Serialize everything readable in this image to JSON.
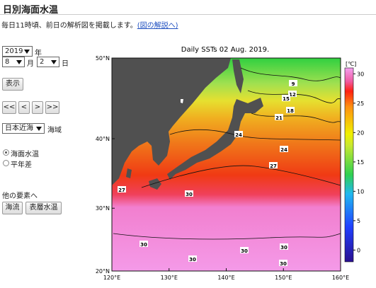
{
  "header": {
    "title": "日別海面水温",
    "notice": "毎日11時頃、前日の解析図を掲載します。",
    "link": "(図の解説へ)"
  },
  "controls": {
    "year": "2019",
    "year_unit": "年",
    "month": "8",
    "month_unit": "月",
    "day": "2",
    "day_unit": "日",
    "show_button": "表示",
    "nav_buttons": [
      "<<",
      "<",
      ">",
      ">>"
    ],
    "area": "日本近海",
    "area_unit": "海域",
    "radios": [
      {
        "label": "海面水温",
        "checked": true
      },
      {
        "label": "平年差",
        "checked": false
      }
    ],
    "other_heading": "他の要素へ",
    "other_buttons": [
      "海流",
      "表層水温"
    ]
  },
  "map": {
    "title": "Daily SSTs 02 Aug. 2019.",
    "xlim": [
      120,
      160
    ],
    "ylim": [
      20,
      50
    ],
    "xticks": [
      {
        "value": 120,
        "label": "120°E"
      },
      {
        "value": 130,
        "label": "130°E"
      },
      {
        "value": 140,
        "label": "140°E"
      },
      {
        "value": 150,
        "label": "150°E"
      },
      {
        "value": 160,
        "label": "160°E"
      }
    ],
    "yticks": [
      {
        "value": 20,
        "label": "20°N"
      },
      {
        "value": 30,
        "label": "30°N"
      },
      {
        "value": 40,
        "label": "40°N"
      },
      {
        "value": 50,
        "label": "50°N"
      }
    ],
    "colorbar": {
      "unit_label": "[℃]",
      "clim": [
        -2,
        31
      ],
      "ticks": [
        0,
        5,
        10,
        15,
        20,
        25,
        30
      ]
    },
    "contour_labels": [
      9,
      12,
      15,
      18,
      21,
      24,
      24,
      27,
      27,
      30,
      30,
      30,
      30,
      30,
      30
    ]
  }
}
